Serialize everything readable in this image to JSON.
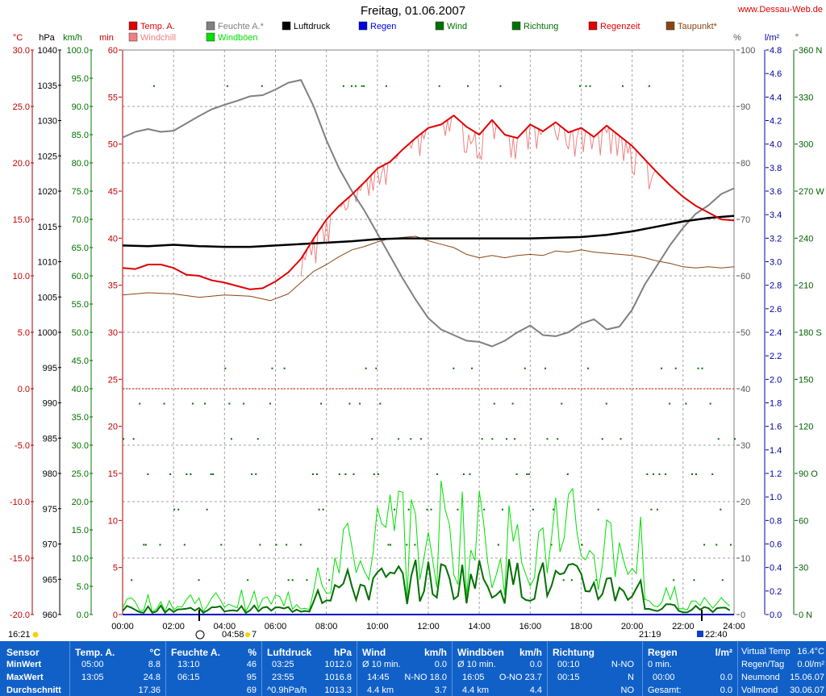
{
  "title": "Freitag, 01.06.2007",
  "site": "www.Dessau-Web.de",
  "units": {
    "temp": "°C",
    "pressure": "hPa",
    "speed": "km/h",
    "minutes": "min",
    "percent": "%",
    "rain": "l/m²",
    "direction": "°"
  },
  "axes": {
    "temp": [
      "30.0",
      "25.0",
      "20.0",
      "15.0",
      "10.0",
      "5.0",
      "0.0",
      "-5.0",
      "-10.0",
      "-15.0",
      "-20.0"
    ],
    "pressure": [
      "1040",
      "1035",
      "1030",
      "1025",
      "1020",
      "1015",
      "1010",
      "1005",
      "1000",
      "995",
      "990",
      "985",
      "980",
      "975",
      "970",
      "965",
      "960"
    ],
    "speed": [
      "100.0",
      "95.0",
      "90.0",
      "85.0",
      "80.0",
      "75.0",
      "70.0",
      "65.0",
      "60.0",
      "55.0",
      "50.0",
      "45.0",
      "40.0",
      "35.0",
      "30.0",
      "25.0",
      "20.0",
      "15.0",
      "10.0",
      "5.0",
      "0.0"
    ],
    "minutes": [
      "60",
      "55",
      "50",
      "45",
      "40",
      "35",
      "30",
      "25",
      "20",
      "15",
      "10",
      "5",
      "0"
    ],
    "percent": [
      "100",
      "90",
      "80",
      "70",
      "60",
      "50",
      "40",
      "30",
      "20",
      "10",
      "0"
    ],
    "rain": [
      "4.8",
      "4.6",
      "4.4",
      "4.2",
      "4.0",
      "3.8",
      "3.6",
      "3.4",
      "3.2",
      "3.0",
      "2.8",
      "2.6",
      "2.4",
      "2.2",
      "2.0",
      "1.8",
      "1.6",
      "1.4",
      "1.2",
      "1.0",
      "0.8",
      "0.6",
      "0.4",
      "0.2",
      "0.0"
    ],
    "direction": [
      "360 N",
      "330",
      "300",
      "270 W",
      "240",
      "210",
      "180 S",
      "150",
      "120",
      "90 O",
      "60",
      "30",
      "0 N"
    ],
    "time": [
      "00:00",
      "02:00",
      "04:00",
      "06:00",
      "08:00",
      "10:00",
      "12:00",
      "14:00",
      "16:00",
      "18:00",
      "20:00",
      "22:00",
      "24:00"
    ]
  },
  "legend": [
    {
      "name": "Temp. A.",
      "color": "#e00000"
    },
    {
      "name": "Windchill",
      "color": "#f08080"
    },
    {
      "name": "Feuchte A.*",
      "color": "#808080"
    },
    {
      "name": "Windböen",
      "color": "#00e000"
    },
    {
      "name": "Luftdruck",
      "color": "#000000"
    },
    {
      "name": "Regen",
      "color": "#0000e0"
    },
    {
      "name": "Wind",
      "color": "#007000"
    },
    {
      "name": "Richtung",
      "color": "#007000"
    },
    {
      "name": "Regenzeit",
      "color": "#e00000"
    },
    {
      "name": "Taupunkt*",
      "color": "#8b4513"
    }
  ],
  "sun": {
    "sunrise_left": "16:21",
    "moonset": "04:58",
    "moonset_count": "7",
    "sunset": "21:19",
    "moonrise": "22:40"
  },
  "footer": {
    "sensor": {
      "head": "Sensor",
      "r1": "MinWert",
      "r2": "MaxWert",
      "r3": "Durchschnitt"
    },
    "temp": {
      "head": "Temp. A.",
      "unit": "°C",
      "min_time": "05:00",
      "min": "8.8",
      "max_time": "13:05",
      "max": "24.8",
      "avg": "17.36"
    },
    "humidity": {
      "head": "Feuchte A.",
      "unit": "%",
      "min_time": "13:10",
      "min": "46",
      "max_time": "06:15",
      "max": "95",
      "avg": "69"
    },
    "pressure": {
      "head": "Luftdruck",
      "unit": "hPa",
      "min_time": "03:25",
      "min": "1012.0",
      "max_time": "23:55",
      "max": "1016.8",
      "trend": "^0.9hPa/h",
      "avg": "1013.3"
    },
    "wind": {
      "head": "Wind",
      "unit": "km/h",
      "r1a": "Ø 10 min.",
      "r1b": "0.0",
      "r2a": "14:45",
      "r2b": "N-NO 18.0",
      "r3a": "4.4 km",
      "r3b": "3.7"
    },
    "gust": {
      "head": "Windböen",
      "unit": "km/h",
      "r1a": "Ø 10 min.",
      "r1b": "0.0",
      "r2a": "16:05",
      "r2b": "O-NO 23.7",
      "r3a": "4.4 km",
      "r3b": "4.4"
    },
    "direction": {
      "head": "Richtung",
      "r1a": "00:10",
      "r1b": "N-NO",
      "r2a": "00:15",
      "r2b": "N",
      "r3b": "NO"
    },
    "rain": {
      "head": "Regen",
      "unit": "l/m²",
      "r1a": "0 min.",
      "r2a": "00:00",
      "r2b": "0.0",
      "r3a": "Gesamt:",
      "r3b": "0.0"
    },
    "extra": {
      "r0a": "Virtual Temp",
      "r0b": "16.4°C",
      "r1a": "Regen/Tag",
      "r1b": "0.0l/m²",
      "r2a": "Neumond",
      "r2b": "15.06.07",
      "r3a": "Vollmond",
      "r3b": "30.06.07"
    }
  },
  "chart_data": {
    "type": "line",
    "title": "Freitag, 01.06.2007",
    "x_unit": "hour of day",
    "xlim": [
      0,
      24
    ],
    "series": [
      {
        "name": "Temp. A.",
        "axis": "°C",
        "ylim": [
          -20,
          30
        ],
        "color": "#e00000",
        "points": [
          [
            0,
            10.7
          ],
          [
            0.5,
            10.6
          ],
          [
            1,
            11
          ],
          [
            1.5,
            11
          ],
          [
            2,
            10.7
          ],
          [
            2.5,
            10.1
          ],
          [
            3,
            10
          ],
          [
            3.5,
            9.6
          ],
          [
            4,
            9.4
          ],
          [
            4.5,
            9.1
          ],
          [
            5,
            8.8
          ],
          [
            5.5,
            8.9
          ],
          [
            6,
            9.5
          ],
          [
            6.5,
            10.3
          ],
          [
            7,
            11.5
          ],
          [
            7.5,
            13.3
          ],
          [
            8,
            15
          ],
          [
            8.5,
            16.2
          ],
          [
            9,
            17.2
          ],
          [
            9.5,
            18.3
          ],
          [
            10,
            19.5
          ],
          [
            10.5,
            20.1
          ],
          [
            11,
            21.2
          ],
          [
            11.5,
            22.2
          ],
          [
            12,
            23.1
          ],
          [
            12.5,
            23.4
          ],
          [
            13,
            24.2
          ],
          [
            13.5,
            23.2
          ],
          [
            14,
            22.5
          ],
          [
            14.5,
            23.8
          ],
          [
            15,
            22.5
          ],
          [
            15.5,
            22.2
          ],
          [
            16,
            23.4
          ],
          [
            16.5,
            22.8
          ],
          [
            17,
            23.6
          ],
          [
            17.5,
            22.7
          ],
          [
            18,
            23.1
          ],
          [
            18.5,
            22.3
          ],
          [
            19,
            23.3
          ],
          [
            19.5,
            22.4
          ],
          [
            20,
            21.5
          ],
          [
            20.5,
            20.3
          ],
          [
            21,
            19.1
          ],
          [
            21.5,
            18
          ],
          [
            22,
            17
          ],
          [
            22.5,
            16.2
          ],
          [
            23,
            15.6
          ],
          [
            23.5,
            15
          ],
          [
            24,
            14.9
          ]
        ]
      },
      {
        "name": "Feuchte A.*",
        "axis": "%",
        "ylim": [
          0,
          100
        ],
        "color": "#808080",
        "points": [
          [
            0,
            84.5
          ],
          [
            0.5,
            85.5
          ],
          [
            1,
            86
          ],
          [
            1.5,
            85.5
          ],
          [
            2,
            85.7
          ],
          [
            2.5,
            87
          ],
          [
            3,
            88.3
          ],
          [
            3.5,
            89.5
          ],
          [
            4,
            90.3
          ],
          [
            4.5,
            91
          ],
          [
            5,
            91.8
          ],
          [
            5.5,
            92
          ],
          [
            6,
            93
          ],
          [
            6.5,
            94.2
          ],
          [
            7,
            94.7
          ],
          [
            7.5,
            90
          ],
          [
            8,
            84
          ],
          [
            8.5,
            79
          ],
          [
            9,
            75
          ],
          [
            9.5,
            71.5
          ],
          [
            10,
            67.5
          ],
          [
            10.5,
            63.5
          ],
          [
            11,
            59.5
          ],
          [
            11.5,
            55.8
          ],
          [
            12,
            52.5
          ],
          [
            12.5,
            50.5
          ],
          [
            13,
            49.5
          ],
          [
            13.5,
            48.5
          ],
          [
            14,
            48.3
          ],
          [
            14.5,
            47.5
          ],
          [
            15,
            48.5
          ],
          [
            15.5,
            50
          ],
          [
            16,
            51.2
          ],
          [
            16.5,
            49.5
          ],
          [
            17,
            49.3
          ],
          [
            17.5,
            50
          ],
          [
            18,
            51.5
          ],
          [
            18.5,
            52.3
          ],
          [
            19,
            50.5
          ],
          [
            19.5,
            51
          ],
          [
            20,
            54
          ],
          [
            20.5,
            58.5
          ],
          [
            21,
            62
          ],
          [
            21.5,
            65.5
          ],
          [
            22,
            68.5
          ],
          [
            22.5,
            71
          ],
          [
            23,
            72.5
          ],
          [
            23.5,
            74.5
          ],
          [
            24,
            75.5
          ]
        ]
      },
      {
        "name": "Luftdruck",
        "axis": "hPa",
        "ylim": [
          960,
          1040
        ],
        "color": "#000000",
        "points": [
          [
            0,
            1012.3
          ],
          [
            1,
            1012.2
          ],
          [
            2,
            1012.4
          ],
          [
            3,
            1012.2
          ],
          [
            4,
            1012.1
          ],
          [
            5,
            1012.1
          ],
          [
            6,
            1012.3
          ],
          [
            7,
            1012.5
          ],
          [
            8,
            1012.7
          ],
          [
            9,
            1012.9
          ],
          [
            10,
            1013.2
          ],
          [
            11,
            1013.3
          ],
          [
            12,
            1013.3
          ],
          [
            13,
            1013.3
          ],
          [
            14,
            1013.3
          ],
          [
            15,
            1013.3
          ],
          [
            16,
            1013.3
          ],
          [
            17,
            1013.4
          ],
          [
            18,
            1013.5
          ],
          [
            19,
            1013.8
          ],
          [
            20,
            1014.3
          ],
          [
            21,
            1015
          ],
          [
            22,
            1015.7
          ],
          [
            23,
            1016.2
          ],
          [
            24,
            1016.5
          ]
        ]
      },
      {
        "name": "Taupunkt*",
        "axis": "°C",
        "ylim": [
          -20,
          30
        ],
        "color": "#8b4513",
        "points": [
          [
            0,
            8.3
          ],
          [
            1,
            8.5
          ],
          [
            2,
            8.4
          ],
          [
            3,
            8.1
          ],
          [
            4,
            8.3
          ],
          [
            5,
            8.2
          ],
          [
            5.8,
            7.8
          ],
          [
            6.5,
            8.4
          ],
          [
            7,
            9.4
          ],
          [
            7.5,
            10.4
          ],
          [
            8,
            11
          ],
          [
            8.5,
            11.7
          ],
          [
            9,
            12.3
          ],
          [
            9.5,
            12.6
          ],
          [
            10,
            13
          ],
          [
            10.5,
            13.3
          ],
          [
            11,
            13.4
          ],
          [
            11.5,
            13.5
          ],
          [
            12,
            13.1
          ],
          [
            12.5,
            12.8
          ],
          [
            13,
            12.5
          ],
          [
            13.5,
            11.9
          ],
          [
            14,
            11.6
          ],
          [
            14.5,
            11.8
          ],
          [
            15,
            11.6
          ],
          [
            15.5,
            11.8
          ],
          [
            16,
            11.9
          ],
          [
            16.5,
            11.8
          ],
          [
            17,
            12.2
          ],
          [
            17.5,
            12.1
          ],
          [
            18,
            12.3
          ],
          [
            18.5,
            12.1
          ],
          [
            19,
            12
          ],
          [
            19.5,
            11.9
          ],
          [
            20,
            11.8
          ],
          [
            20.5,
            11.6
          ],
          [
            21,
            11.3
          ],
          [
            21.5,
            11.1
          ],
          [
            22,
            10.8
          ],
          [
            22.5,
            10.7
          ],
          [
            23,
            10.8
          ],
          [
            23.5,
            10.7
          ],
          [
            24,
            10.8
          ]
        ]
      },
      {
        "name": "Wind",
        "axis": "km/h",
        "ylim": [
          0,
          100
        ],
        "color": "#007000",
        "samples_every_min": 10,
        "note": "noisy 10-minute samples, peak 18.0 at 14:45"
      },
      {
        "name": "Windböen",
        "axis": "km/h",
        "ylim": [
          0,
          100
        ],
        "color": "#00e000",
        "note": "peak 23.7 at 16:05"
      },
      {
        "name": "Richtung",
        "axis": "°",
        "ylim": [
          0,
          360
        ],
        "color": "#007000",
        "style": "dots"
      },
      {
        "name": "Regen",
        "axis": "l/m²",
        "ylim": [
          0,
          5
        ],
        "color": "#0000e0",
        "total": 0.0
      }
    ],
    "reference_line": {
      "axis": "°C",
      "value": 0.0,
      "color": "#e00000",
      "style": "dashed"
    },
    "grid": true
  }
}
